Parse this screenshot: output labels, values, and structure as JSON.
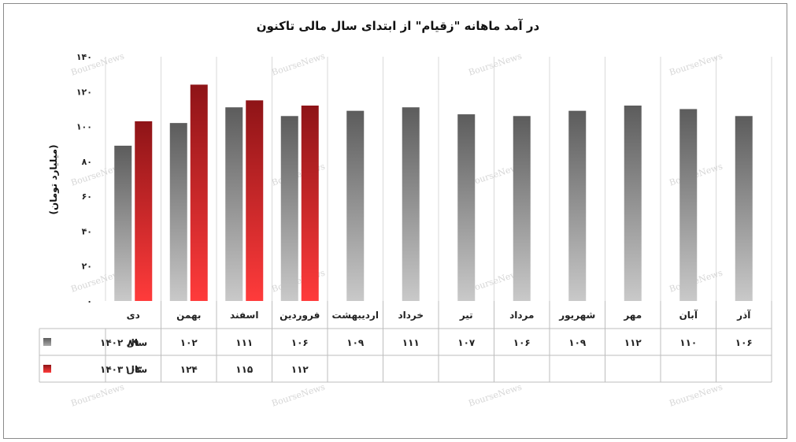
{
  "chart_data": {
    "type": "bar",
    "title": "در آمد ماهانه \"زقیام\" از ابتدای سال مالی تاکنون",
    "ylabel": "(میلیارد تومان)",
    "ylim": [
      0,
      140
    ],
    "yticks": [
      0,
      20,
      40,
      60,
      80,
      100,
      120,
      140
    ],
    "ytick_labels": [
      "۰",
      "۲۰",
      "۴۰",
      "۶۰",
      "۸۰",
      "۱۰۰",
      "۱۲۰",
      "۱۴۰"
    ],
    "categories": [
      "دی",
      "بهمن",
      "اسفند",
      "فروردین",
      "اردیبهشت",
      "خرداد",
      "تیر",
      "مرداد",
      "شهریور",
      "مهر",
      "آبان",
      "آذر"
    ],
    "series": [
      {
        "name": "سال ۱۴۰۲",
        "color": "#7a7a7a",
        "values": [
          89,
          102,
          111,
          106,
          109,
          111,
          107,
          106,
          109,
          112,
          110,
          106
        ],
        "labels": [
          "۸۹",
          "۱۰۲",
          "۱۱۱",
          "۱۰۶",
          "۱۰۹",
          "۱۱۱",
          "۱۰۷",
          "۱۰۶",
          "۱۰۹",
          "۱۱۲",
          "۱۱۰",
          "۱۰۶"
        ]
      },
      {
        "name": "سال ۱۴۰۳",
        "color": "#c0181c",
        "values": [
          103,
          124,
          115,
          112,
          null,
          null,
          null,
          null,
          null,
          null,
          null,
          null
        ],
        "labels": [
          "۱۰۳",
          "۱۲۴",
          "۱۱۵",
          "۱۱۲",
          "",
          "",
          "",
          "",
          "",
          "",
          "",
          ""
        ]
      }
    ],
    "grid": "vertical",
    "legend": "data-table",
    "watermark": "BourseNews"
  }
}
